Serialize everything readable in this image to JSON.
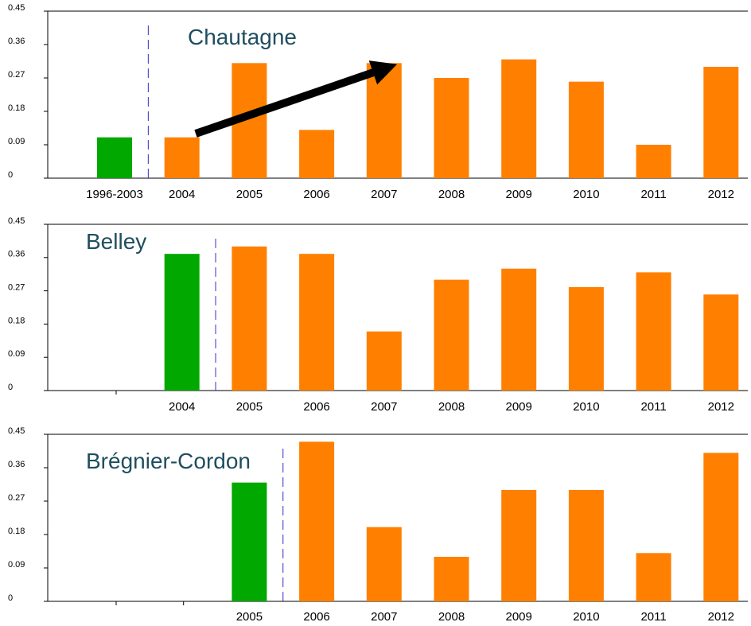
{
  "chart_data": [
    {
      "type": "bar",
      "annotation": "Chautagne",
      "categories": [
        "1996-2003",
        "2004",
        "2005",
        "2006",
        "2007",
        "2008",
        "2009",
        "2010",
        "2011",
        "2012"
      ],
      "values": [
        0.11,
        0.11,
        0.31,
        0.13,
        0.31,
        0.27,
        0.32,
        0.26,
        0.09,
        0.3
      ],
      "colors": [
        "#00a800",
        "#ff8000",
        "#ff8000",
        "#ff8000",
        "#ff8000",
        "#ff8000",
        "#ff8000",
        "#ff8000",
        "#ff8000",
        "#ff8000"
      ],
      "ylim": [
        0,
        0.45
      ],
      "yticks": [
        0,
        0.09,
        0.18,
        0.27,
        0.36,
        0.45
      ]
    },
    {
      "type": "bar",
      "annotation": "Belley",
      "categories": [
        null,
        "2004",
        "2005",
        "2006",
        "2007",
        "2008",
        "2009",
        "2010",
        "2011",
        "2012"
      ],
      "values": [
        null,
        0.37,
        0.39,
        0.37,
        0.16,
        0.3,
        0.33,
        0.28,
        0.32,
        0.26
      ],
      "colors": [
        null,
        "#00a800",
        "#ff8000",
        "#ff8000",
        "#ff8000",
        "#ff8000",
        "#ff8000",
        "#ff8000",
        "#ff8000",
        "#ff8000"
      ],
      "ylim": [
        0,
        0.45
      ],
      "yticks": [
        0,
        0.09,
        0.18,
        0.27,
        0.36,
        0.45
      ]
    },
    {
      "type": "bar",
      "annotation": "Brégnier-Cordon",
      "categories": [
        null,
        null,
        "2005",
        "2006",
        "2007",
        "2008",
        "2009",
        "2010",
        "2011",
        "2012"
      ],
      "values": [
        null,
        null,
        0.32,
        0.43,
        0.2,
        0.12,
        0.3,
        0.3,
        0.13,
        0.4
      ],
      "colors": [
        null,
        null,
        "#00a800",
        "#ff8000",
        "#ff8000",
        "#ff8000",
        "#ff8000",
        "#ff8000",
        "#ff8000",
        "#ff8000"
      ],
      "ylim": [
        0,
        0.45
      ],
      "yticks": [
        0,
        0.09,
        0.18,
        0.27,
        0.36,
        0.45
      ]
    }
  ]
}
